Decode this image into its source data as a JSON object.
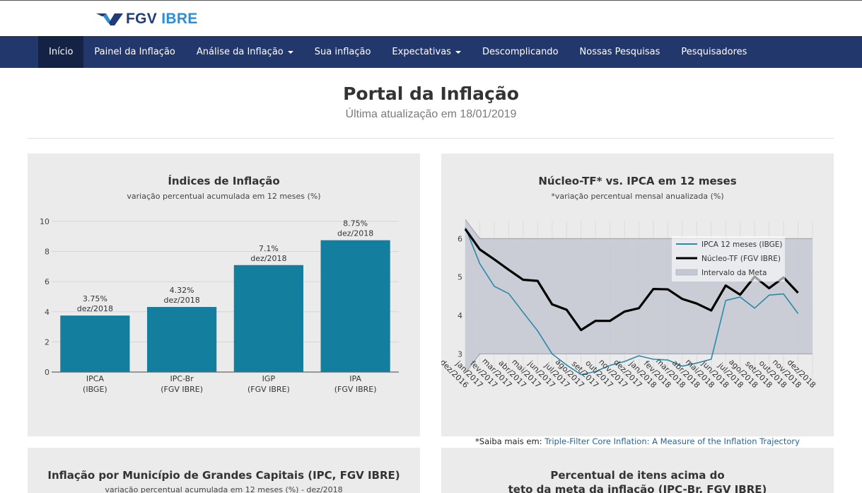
{
  "brand": {
    "name": "FGV",
    "suffix": "IBRE"
  },
  "nav": {
    "items": [
      {
        "label": "Início"
      },
      {
        "label": "Painel da Inflação"
      },
      {
        "label": "Análise da Inflação"
      },
      {
        "label": "Sua inflação"
      },
      {
        "label": "Expectativas"
      },
      {
        "label": "Descomplicando"
      },
      {
        "label": "Nossas Pesquisas"
      },
      {
        "label": "Pesquisadores"
      }
    ]
  },
  "page": {
    "title": "Portal da Inflação",
    "subtitle": "Última atualização em 18/01/2019"
  },
  "panel1": {
    "title": "Índices de Inflação",
    "subtitle": "variação percentual acumulada em 12 meses (%)"
  },
  "panel2": {
    "title": "Núcleo-TF* vs. IPCA em 12 meses",
    "subtitle": "*variação percentual mensal anualizada (%)"
  },
  "panel3": {
    "title": "Inflação por Município de Grandes Capitais (IPC, FGV IBRE)",
    "subtitle": "variação percentual acumulada em 12 meses (%) - dez/2018"
  },
  "panel4": {
    "title_line1": "Percentual de itens acima do",
    "title_line2": "teto da meta da inflação (IPC-Br, FGV IBRE)"
  },
  "footnote": {
    "prefix": "*Saiba mais em: ",
    "link": "Triple-Filter Core Inflation: A Measure of the Inflation Trajectory"
  },
  "colors": {
    "navbar": "#22386d",
    "bar": "#137e9e",
    "ipca_line": "#2c8aa8",
    "nucleo_line": "#000000",
    "band": "#c5c8d2"
  },
  "chart_data": [
    {
      "type": "bar",
      "title": "Índices de Inflação",
      "subtitle": "variação percentual acumulada em 12 meses (%)",
      "categories": [
        {
          "line1": "IPCA",
          "line2": "(IBGE)"
        },
        {
          "line1": "IPC-Br",
          "line2": "(FGV IBRE)"
        },
        {
          "line1": "IGP",
          "line2": "(FGV IBRE)"
        },
        {
          "line1": "IPA",
          "line2": "(FGV IBRE)"
        }
      ],
      "values": [
        3.75,
        4.32,
        7.1,
        8.75
      ],
      "labels": [
        {
          "value": "3.75%",
          "date": "dez/2018"
        },
        {
          "value": "4.32%",
          "date": "dez/2018"
        },
        {
          "value": "7.1%",
          "date": "dez/2018"
        },
        {
          "value": "8.75%",
          "date": "dez/2018"
        }
      ],
      "yticks": [
        0,
        2,
        4,
        6,
        8,
        10
      ],
      "ylim": [
        0,
        10
      ]
    },
    {
      "type": "line",
      "title": "Núcleo-TF* vs. IPCA em 12 meses",
      "subtitle": "*variação percentual mensal anualizada (%)",
      "x": [
        "dez/2016",
        "jan/2017",
        "fev/2017",
        "mar/2017",
        "abr/2017",
        "mai/2017",
        "jun/2017",
        "jul/2017",
        "ago/2017",
        "set/2017",
        "out/2017",
        "nov/2017",
        "dez/2017",
        "jan/2018",
        "fev/2018",
        "mar/2018",
        "abr/2018",
        "mai/2018",
        "jun/2018",
        "jul/2018",
        "ago/2018",
        "set/2018",
        "out/2018",
        "nov/2018",
        "dez/2018"
      ],
      "series": [
        {
          "name": "IPCA 12 meses (IBGE)",
          "values": [
            6.29,
            5.35,
            4.76,
            4.57,
            4.08,
            3.6,
            3.0,
            2.71,
            2.46,
            2.54,
            2.7,
            2.8,
            2.95,
            2.86,
            2.84,
            2.68,
            2.76,
            2.86,
            4.39,
            4.48,
            4.19,
            4.53,
            4.56,
            4.05,
            null
          ]
        },
        {
          "name": "Núcleo-TF (FGV IBRE)",
          "values": [
            6.25,
            5.72,
            5.46,
            5.19,
            4.93,
            4.9,
            4.29,
            4.15,
            3.62,
            3.86,
            3.86,
            4.1,
            4.19,
            4.69,
            4.68,
            4.43,
            4.31,
            4.13,
            4.78,
            4.54,
            5.01,
            4.71,
            4.99,
            4.59,
            null
          ]
        },
        {
          "name": "Intervalo da Meta",
          "band": true,
          "lower": [
            2.5,
            3.0,
            3.0,
            3.0,
            3.0,
            3.0,
            3.0,
            3.0,
            3.0,
            3.0,
            3.0,
            3.0,
            3.0,
            3.0,
            3.0,
            3.0,
            3.0,
            3.0,
            3.0,
            3.0,
            3.0,
            3.0,
            3.0,
            3.0,
            3.0
          ],
          "upper": [
            6.5,
            6.0,
            6.0,
            6.0,
            6.0,
            6.0,
            6.0,
            6.0,
            6.0,
            6.0,
            6.0,
            6.0,
            6.0,
            6.0,
            6.0,
            6.0,
            6.0,
            6.0,
            6.0,
            6.0,
            6.0,
            6.0,
            6.0,
            6.0,
            6.0
          ]
        }
      ],
      "yticks": [
        3,
        4,
        5,
        6
      ],
      "ylim": [
        2.25,
        6.45
      ],
      "legend": "top-right"
    }
  ]
}
